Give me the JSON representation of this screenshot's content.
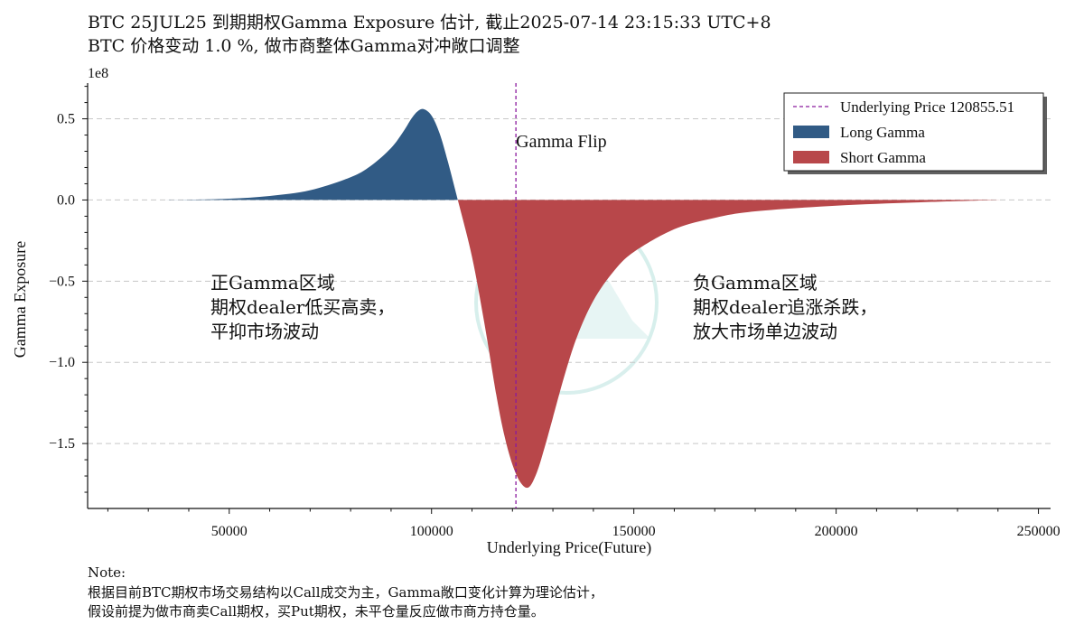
{
  "title_line1": "BTC 25JUL25 到期期权Gamma Exposure 估计, 截止2025-07-14 23:15:33 UTC+8",
  "title_line2": "BTC 价格变动 1.0 %, 做市商整体Gamma对冲敞口调整",
  "note": {
    "label": "Note:",
    "line1": "根据目前BTC期权市场交易结构以Call成交为主，Gamma敞口变化计算为理论估计，",
    "line2": "假设前提为做市商卖Call期权，买Put期权，未平仓量反应做市商方持仓量。"
  },
  "chart_data": {
    "type": "area",
    "title": "BTC 25JUL25 到期期权Gamma Exposure 估计",
    "xlabel": "Underlying Price(Future)",
    "ylabel": "Gamma Exposure",
    "y_multiplier": "1e8",
    "xlim": [
      15000,
      253000
    ],
    "ylim": [
      -1.9,
      0.72
    ],
    "x_ticks": [
      50000,
      100000,
      150000,
      200000,
      250000
    ],
    "x_tick_labels": [
      "50000",
      "100000",
      "150000",
      "200000",
      "250000"
    ],
    "y_ticks": [
      0.5,
      0.0,
      -0.5,
      -1.0,
      -1.5
    ],
    "y_tick_labels": [
      "0.5",
      "0.0",
      "−0.5",
      "−1.0",
      "−1.5"
    ],
    "grid": "horizontal-dashed",
    "legend_position": "top-right",
    "underlying_price": 120855.51,
    "flip_price": 106500,
    "series": [
      {
        "name": "Long Gamma",
        "color": "#315b85",
        "x": [
          25000,
          40000,
          50000,
          60000,
          70000,
          80000,
          85000,
          90000,
          93000,
          95000,
          96500,
          98000,
          100000,
          102000,
          104000,
          106500
        ],
        "y": [
          0.0,
          0.002,
          0.008,
          0.025,
          0.06,
          0.14,
          0.21,
          0.32,
          0.42,
          0.5,
          0.545,
          0.56,
          0.52,
          0.41,
          0.24,
          0.0
        ]
      },
      {
        "name": "Short Gamma",
        "color": "#b8474a",
        "x": [
          106500,
          110000,
          113000,
          116000,
          118000,
          120000,
          122000,
          124000,
          126000,
          128000,
          130000,
          133000,
          136000,
          140000,
          145000,
          150000,
          160000,
          170000,
          180000,
          200000,
          220000,
          241000
        ],
        "y": [
          0.0,
          -0.35,
          -0.75,
          -1.2,
          -1.45,
          -1.63,
          -1.74,
          -1.77,
          -1.68,
          -1.52,
          -1.34,
          -1.07,
          -0.84,
          -0.62,
          -0.44,
          -0.32,
          -0.18,
          -0.11,
          -0.07,
          -0.035,
          -0.015,
          0.0
        ]
      }
    ],
    "legend": [
      {
        "label": "Underlying Price 120855.51",
        "kind": "line",
        "color": "#8a1a9e"
      },
      {
        "label": "Long Gamma",
        "kind": "patch",
        "color": "#315b85"
      },
      {
        "label": "Short Gamma",
        "kind": "patch",
        "color": "#b8474a"
      }
    ],
    "annotations": {
      "flip": "Gamma Flip",
      "positive_zone": [
        "正Gamma区域",
        "期权dealer低买高卖，",
        "平抑市场波动"
      ],
      "negative_zone": [
        "负Gamma区域",
        "期权dealer追涨杀跌，",
        "放大市场单边波动"
      ]
    }
  }
}
